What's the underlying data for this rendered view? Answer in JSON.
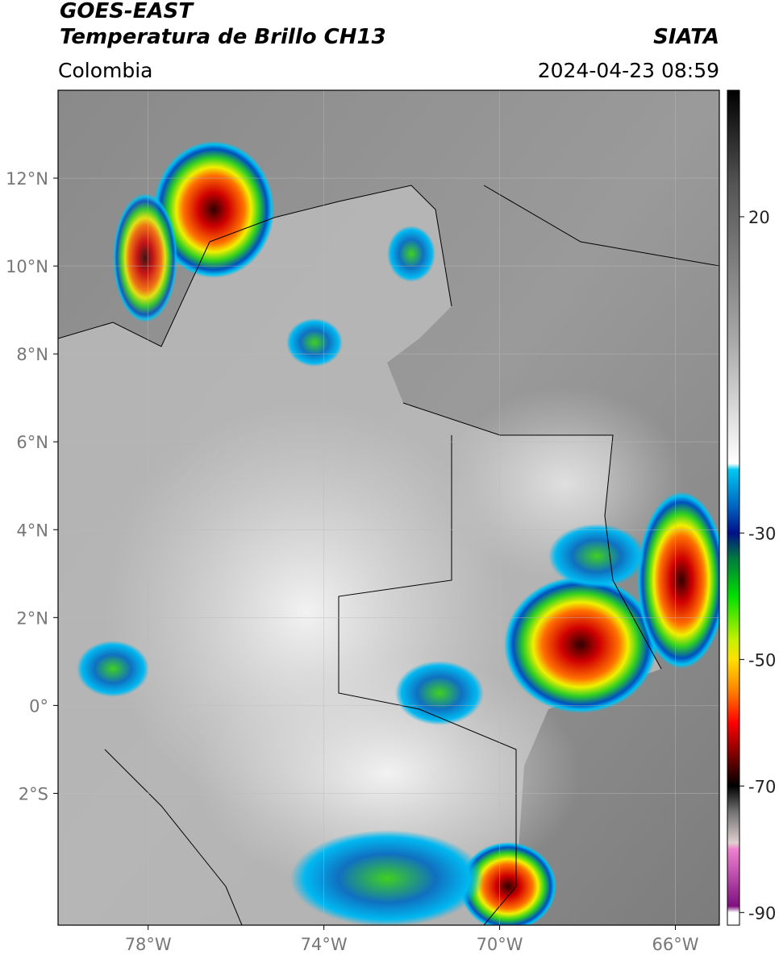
{
  "header": {
    "satellite": "GOES-EAST",
    "product": "Temperatura de Brillo CH13",
    "source": "SIATA",
    "region": "Colombia",
    "datetime": "2024-04-23 08:59"
  },
  "map": {
    "lonlim": [
      -80.05,
      -65
    ],
    "latlim": [
      -5,
      14
    ],
    "lonticks": [
      {
        "value": -78,
        "label": "78°W"
      },
      {
        "value": -74,
        "label": "74°W"
      },
      {
        "value": -70,
        "label": "70°W"
      },
      {
        "value": -66,
        "label": "66°W"
      }
    ],
    "latticks": [
      {
        "value": 12,
        "label": "12°N"
      },
      {
        "value": 10,
        "label": "10°N"
      },
      {
        "value": 8,
        "label": "8°N"
      },
      {
        "value": 6,
        "label": "6°N"
      },
      {
        "value": 4,
        "label": "4°N"
      },
      {
        "value": 2,
        "label": "2°N"
      },
      {
        "value": 0,
        "label": "0°"
      },
      {
        "value": -2,
        "label": "2°S"
      }
    ],
    "grid": true
  },
  "colorbar": {
    "lim": [
      -92,
      40
    ],
    "ticks": [
      20,
      -30,
      -50,
      -70,
      -90
    ],
    "colormap": [
      {
        "value": 40,
        "color": "#000000"
      },
      {
        "value": 25,
        "color": "#555555"
      },
      {
        "value": 0,
        "color": "#aaaaaa"
      },
      {
        "value": -19,
        "color": "#ffffff"
      },
      {
        "value": -20,
        "color": "#00c8f0"
      },
      {
        "value": -26,
        "color": "#0060c0"
      },
      {
        "value": -30,
        "color": "#00108a"
      },
      {
        "value": -34,
        "color": "#007a40"
      },
      {
        "value": -40,
        "color": "#00e000"
      },
      {
        "value": -47,
        "color": "#c8f000"
      },
      {
        "value": -50,
        "color": "#ffe000"
      },
      {
        "value": -55,
        "color": "#ff8000"
      },
      {
        "value": -60,
        "color": "#ff0000"
      },
      {
        "value": -65,
        "color": "#800000"
      },
      {
        "value": -70,
        "color": "#000000"
      },
      {
        "value": -74,
        "color": "#707070"
      },
      {
        "value": -79,
        "color": "#e0d0d0"
      },
      {
        "value": -80,
        "color": "#f080d0"
      },
      {
        "value": -89,
        "color": "#801080"
      },
      {
        "value": -90,
        "color": "#ffffff"
      }
    ]
  }
}
